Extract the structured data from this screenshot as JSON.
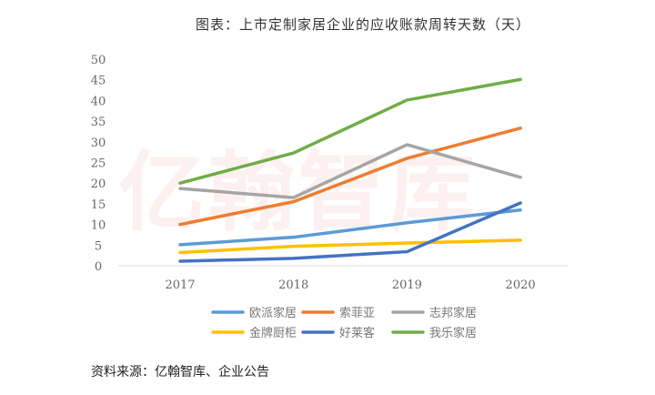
{
  "watermark": "亿翰智库",
  "chart_data": {
    "type": "line",
    "title": "图表：上市定制家居企业的应收账款周转天数（天）",
    "xlabel": "",
    "ylabel": "",
    "categories": [
      "2017",
      "2018",
      "2019",
      "2020"
    ],
    "ylim": [
      0,
      50
    ],
    "yticks": [
      0,
      5,
      10,
      15,
      20,
      25,
      30,
      35,
      40,
      45,
      50
    ],
    "grid": false,
    "legend": "bottom",
    "series": [
      {
        "name": "欧派家居",
        "color": "#5b9bd5",
        "values": [
          5.1,
          6.9,
          10.4,
          13.5
        ]
      },
      {
        "name": "索菲亚",
        "color": "#ed7d31",
        "values": [
          10.0,
          15.5,
          26.0,
          33.3
        ]
      },
      {
        "name": "志邦家居",
        "color": "#a5a5a5",
        "values": [
          18.7,
          16.5,
          29.3,
          21.4
        ]
      },
      {
        "name": "金牌厨柜",
        "color": "#ffc000",
        "values": [
          3.2,
          4.7,
          5.5,
          6.2
        ]
      },
      {
        "name": "好莱客",
        "color": "#4472c4",
        "values": [
          1.1,
          1.8,
          3.4,
          15.2
        ]
      },
      {
        "name": "我乐家居",
        "color": "#70ad47",
        "values": [
          20.0,
          27.3,
          40.1,
          45.1
        ]
      }
    ]
  },
  "source": "资料来源：亿翰智库、企业公告"
}
